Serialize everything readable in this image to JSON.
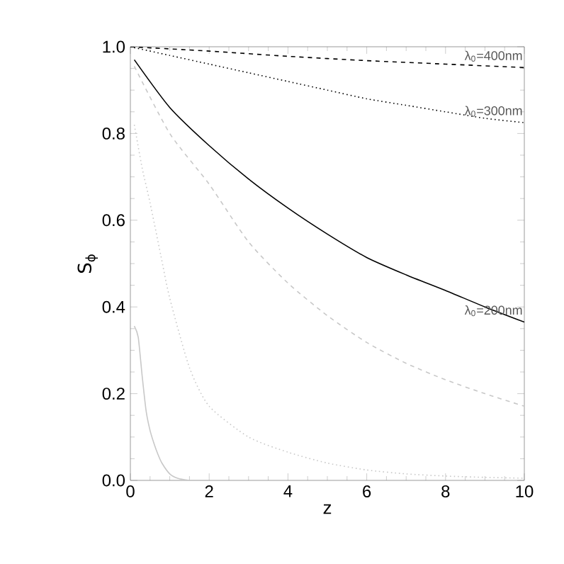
{
  "chart_data": {
    "type": "line",
    "xlabel": "z",
    "ylabel": "S$_{ϕ}$",
    "xlim": [
      0,
      10
    ],
    "ylim": [
      0,
      1.0
    ],
    "xticks": [
      0,
      2,
      4,
      6,
      8,
      10
    ],
    "yticks": [
      {
        "value": 0,
        "label": "0.0"
      },
      0.2,
      0.4,
      0.6,
      0.8,
      {
        "value": 1.0,
        "label": "1.0"
      }
    ],
    "series": [
      {
        "color": "#000000",
        "line_style": "dashed",
        "x": [
          0,
          2,
          4,
          6,
          8,
          10
        ],
        "values": [
          1.0,
          0.99,
          0.978,
          0.968,
          0.96,
          0.952
        ]
      },
      {
        "color": "#000000",
        "line_style": "dotted",
        "x": [
          0,
          1,
          2,
          3,
          4,
          5,
          6,
          7,
          8,
          9,
          10
        ],
        "values": [
          1.0,
          0.98,
          0.96,
          0.94,
          0.92,
          0.9,
          0.88,
          0.865,
          0.85,
          0.835,
          0.825
        ]
      },
      {
        "color": "#000000",
        "line_style": "solid",
        "x": [
          0.1,
          1,
          2,
          3,
          4,
          5,
          6,
          7,
          8,
          9,
          10
        ],
        "values": [
          0.97,
          0.86,
          0.772,
          0.695,
          0.628,
          0.568,
          0.514,
          0.474,
          0.438,
          0.4,
          0.365
        ]
      },
      {
        "color": "#c8c8c8",
        "line_style": "dashed",
        "x": [
          0.1,
          1,
          2,
          3,
          4,
          5,
          6,
          7,
          8,
          9,
          10
        ],
        "values": [
          0.955,
          0.8,
          0.683,
          0.55,
          0.455,
          0.38,
          0.318,
          0.27,
          0.232,
          0.2,
          0.171
        ]
      },
      {
        "color": "#c8c8c8",
        "line_style": "dotted",
        "x": [
          0.1,
          0.3,
          0.5,
          0.77,
          1,
          1.5,
          2,
          3,
          4,
          5,
          6,
          7,
          8,
          9,
          10
        ],
        "values": [
          0.82,
          0.72,
          0.64,
          0.52,
          0.42,
          0.26,
          0.171,
          0.1,
          0.065,
          0.04,
          0.024,
          0.015,
          0.01,
          0.007,
          0.005
        ]
      },
      {
        "color": "#c8c8c8",
        "line_style": "solid",
        "x": [
          0.1,
          0.2,
          0.3,
          0.4,
          0.5,
          0.6,
          0.7,
          0.8,
          1.0,
          1.2,
          1.5,
          2
        ],
        "values": [
          0.356,
          0.33,
          0.24,
          0.16,
          0.115,
          0.085,
          0.06,
          0.04,
          0.015,
          0.005,
          0,
          0
        ]
      }
    ],
    "annotations": [
      "λ$_{0}$=400nm",
      "λ$_{0}$=300nm",
      "λ$_{0}$=200nm"
    ]
  }
}
